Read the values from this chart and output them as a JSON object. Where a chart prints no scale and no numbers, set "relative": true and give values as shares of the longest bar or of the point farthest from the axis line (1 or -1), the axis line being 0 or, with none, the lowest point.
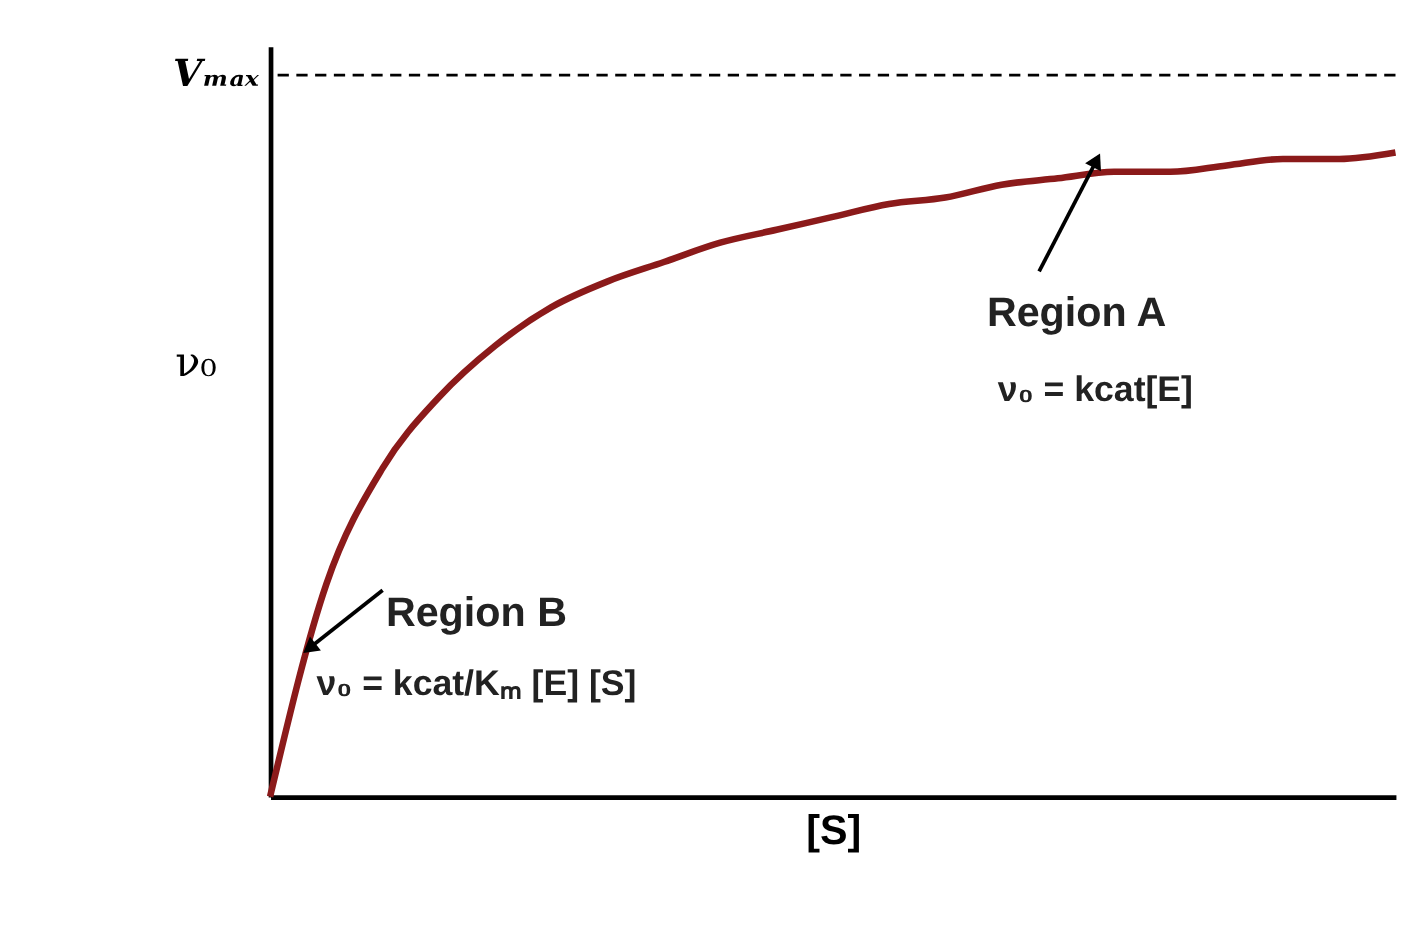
{
  "chart_data": {
    "type": "line",
    "relative": true,
    "xlabel": "[S]",
    "ylabel": "ν₀",
    "categories": [
      null,
      null,
      null,
      null,
      null,
      null,
      null,
      null,
      null,
      null,
      null,
      null,
      null,
      null,
      null,
      null,
      null,
      null,
      null,
      null,
      null
    ],
    "series": [
      {
        "color": "#8b1a1a",
        "values": [
          0,
          0.33,
          0.51,
          0.62,
          0.7,
          0.76,
          0.8,
          0.83,
          0.86,
          0.88,
          0.9,
          0.92,
          0.93,
          0.95,
          0.96,
          0.97,
          0.97,
          0.98,
          0.99,
          0.99,
          1.0
        ]
      }
    ],
    "ref_lines": [
      {
        "axis": "y",
        "value": 1.12,
        "label": "Vₘₐₓ",
        "color": "#000000",
        "line_style": "dashed"
      }
    ],
    "annotations": [
      "Region A",
      "ν₀ = kcat[E]",
      "Region B",
      "ν₀ = kcat/Kₘ [E] [S]"
    ],
    "line_style": "solid",
    "marker": "none",
    "grid": false,
    "legend": false,
    "tick_labels": false
  }
}
